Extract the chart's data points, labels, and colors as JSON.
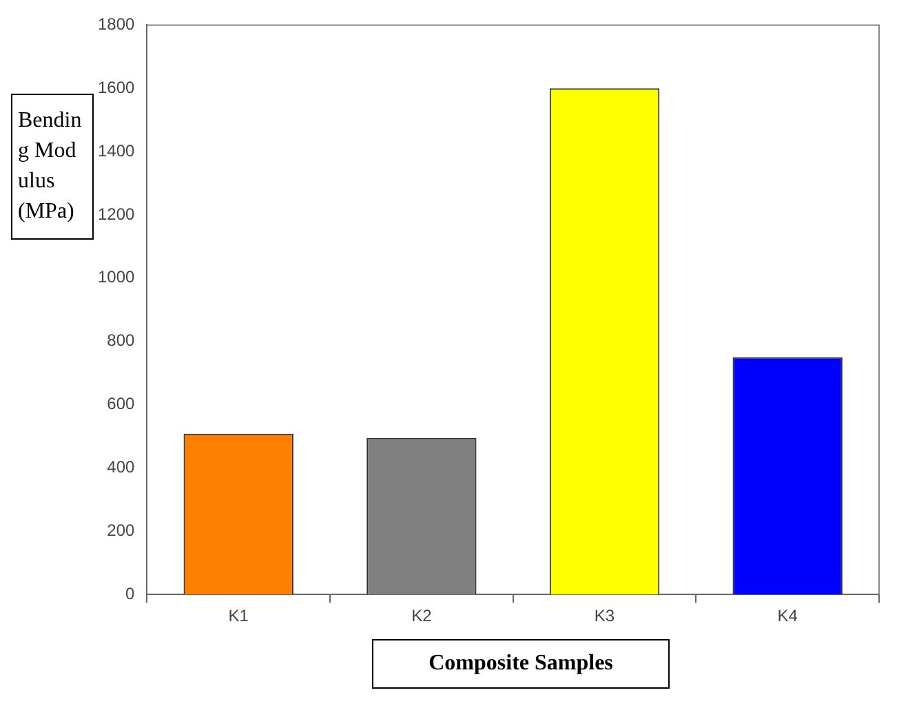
{
  "chart_data": {
    "type": "bar",
    "xlabel": "Composite Samples",
    "ylabel": "Bending Modulus (MPa)",
    "categories": [
      "K1",
      "K2",
      "K3",
      "K4"
    ],
    "values": [
      508,
      495,
      1600,
      750
    ],
    "colors": [
      "#ff8000",
      "#808080",
      "#ffff00",
      "#0000ff"
    ],
    "ylim": [
      0,
      1800
    ],
    "yticks": [
      0,
      200,
      400,
      600,
      800,
      1000,
      1200,
      1400,
      1600,
      1800
    ],
    "grid": false,
    "legend": false
  }
}
